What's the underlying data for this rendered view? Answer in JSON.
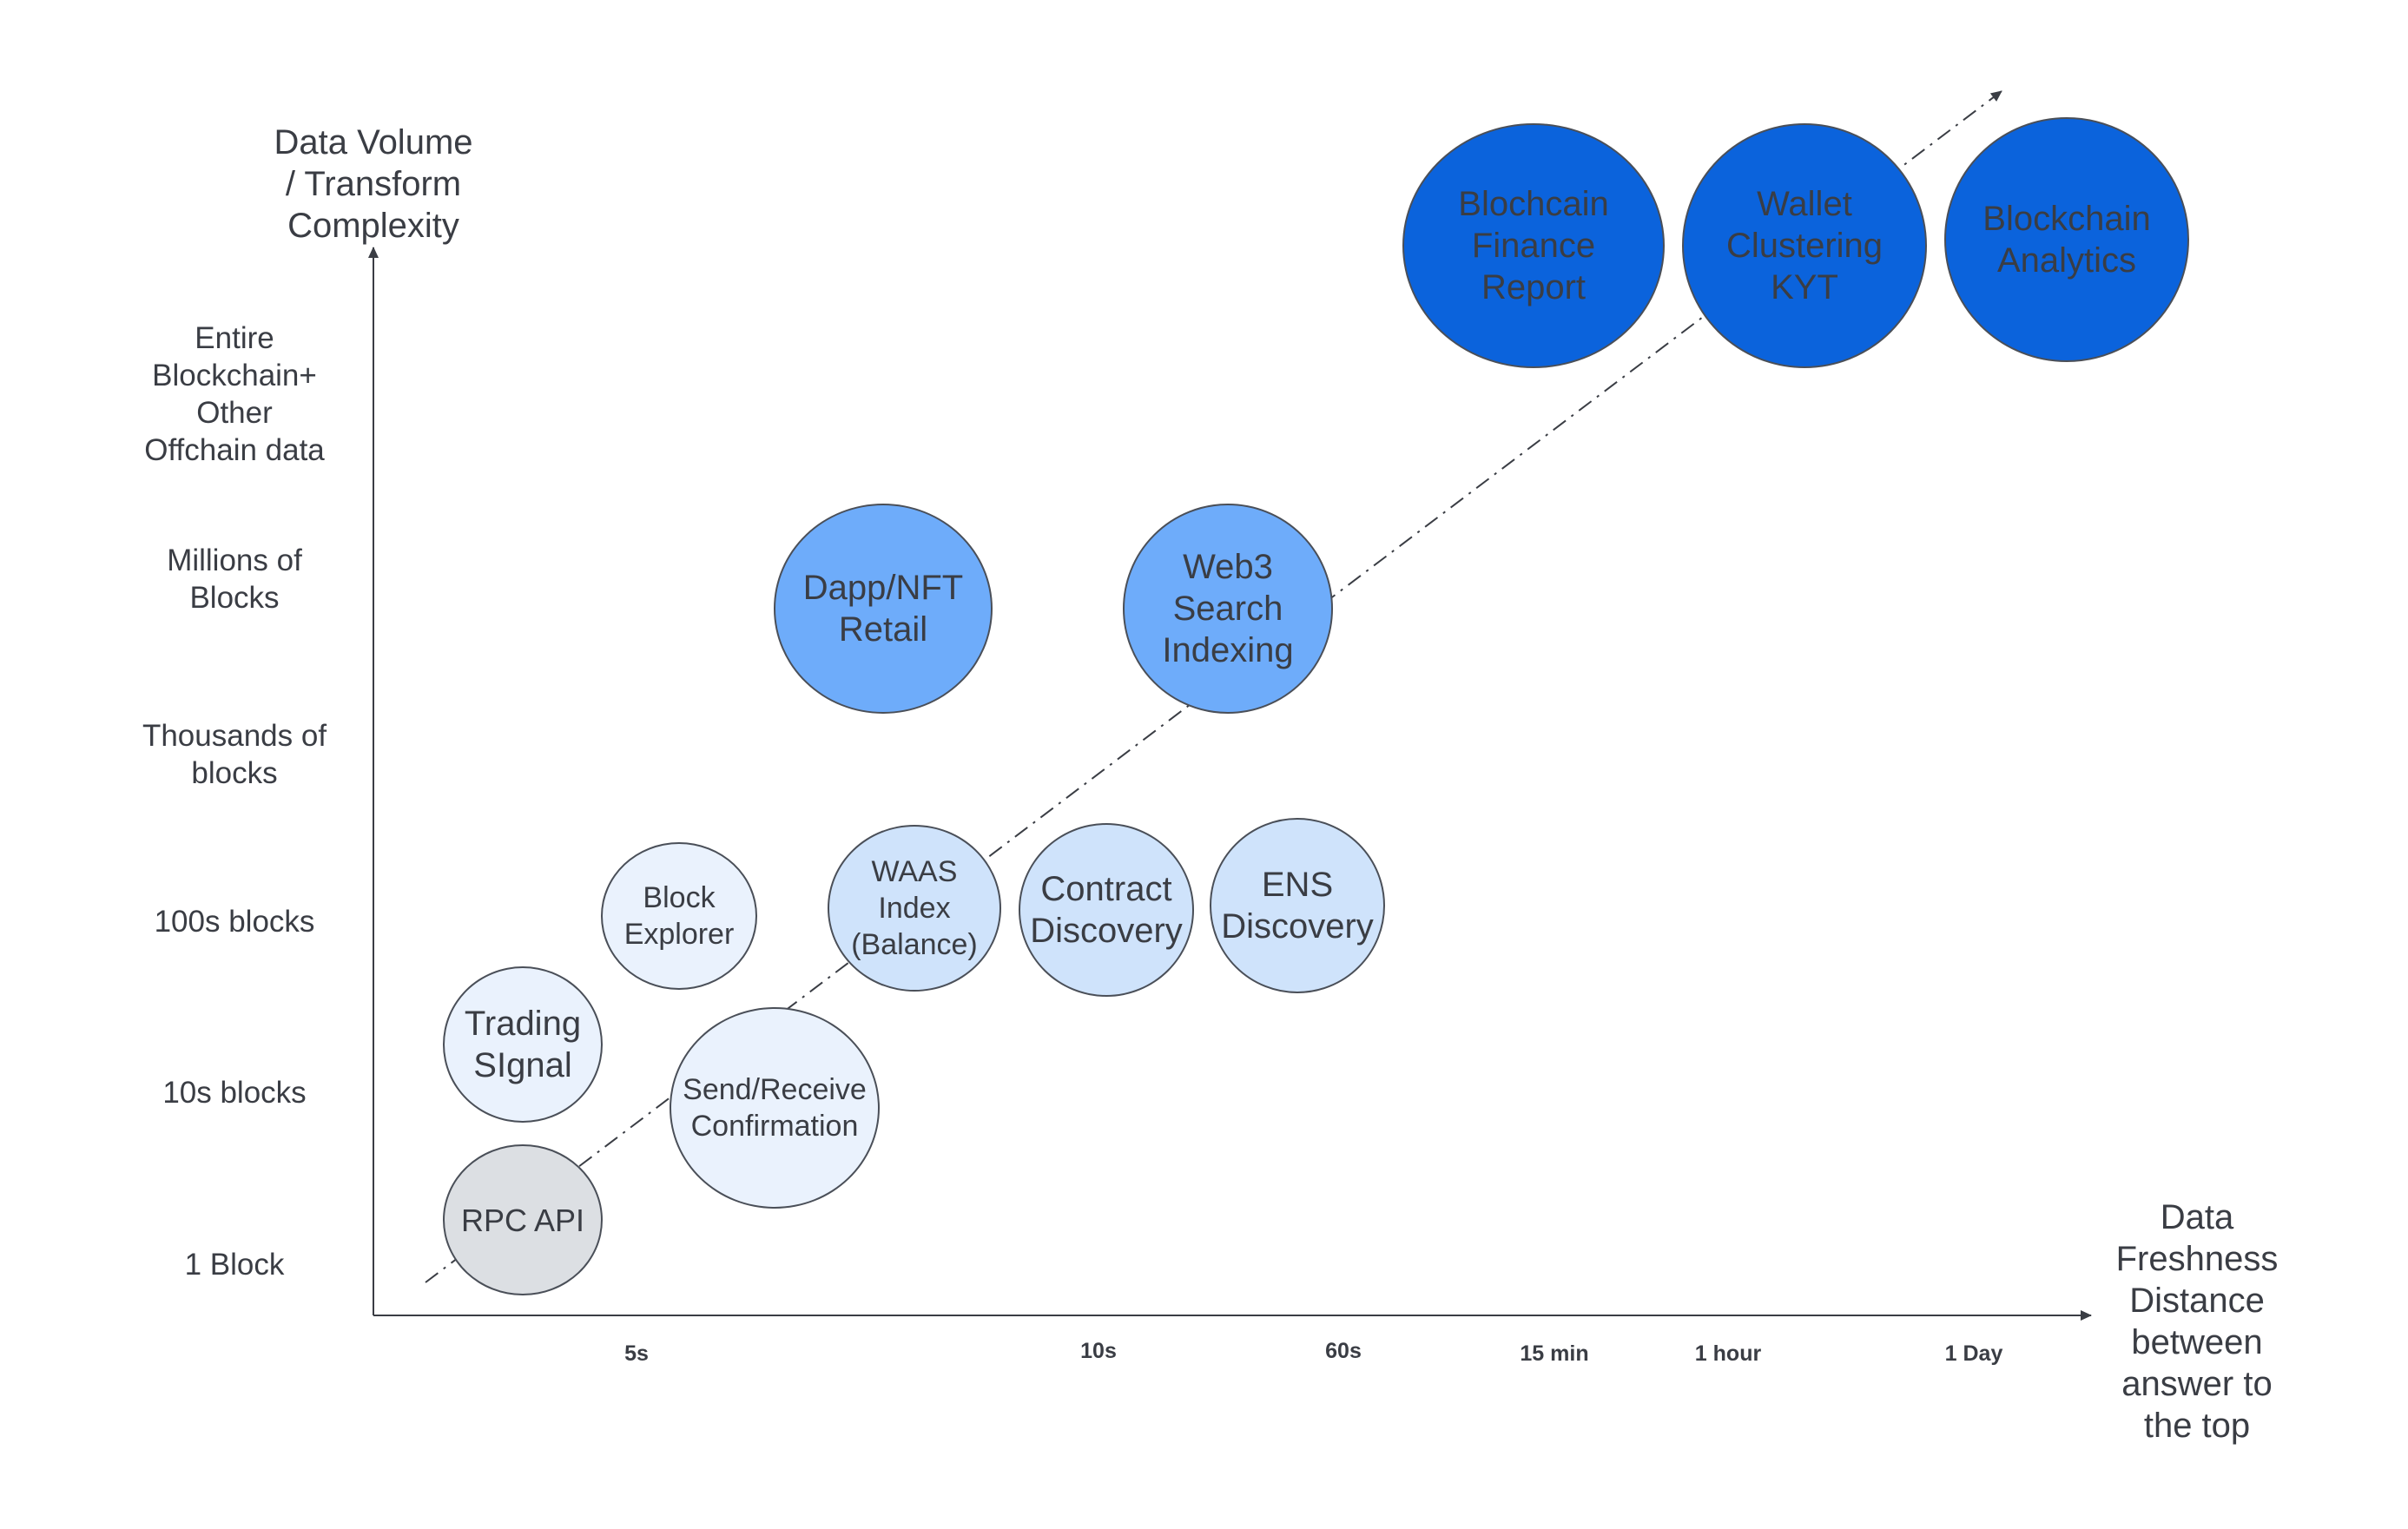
{
  "axes": {
    "y_title": "Data Volume\n/ Transform\nComplexity",
    "x_title": "Data\nFreshness\nDistance\nbetween\nanswer to\nthe top"
  },
  "y_levels": [
    "Entire\nBlockchain+\nOther\nOffchain data",
    "Millions of\nBlocks",
    "Thousands of\nblocks",
    "100s blocks",
    "10s blocks",
    "1 Block"
  ],
  "x_levels": [
    "5s",
    "10s",
    "60s",
    "15 min",
    "1 hour",
    "1 Day"
  ],
  "nodes": {
    "rpc_api": "RPC API",
    "trading_signal": "Trading\nSIgnal",
    "block_explorer": "Block\nExplorer",
    "send_receive": "Send/Receive\nConfirmation",
    "waas_index": "WAAS\nIndex\n(Balance)",
    "contract_discovery": "Contract\nDiscovery",
    "ens_discovery": "ENS\nDiscovery",
    "dapp_nft_retail": "Dapp/NFT\nRetail",
    "web3_search": "Web3\nSearch\nIndexing",
    "finance_report": "Blochcain\nFinance\nReport",
    "wallet_clustering": "Wallet\nClustering\nKYT",
    "blockchain_analytics": "Blockchain\nAnalytics"
  },
  "colors": {
    "gray": "#dcdfe3",
    "pale_blue": "#eaf2fd",
    "light_blue": "#cfe3fb",
    "mid_blue": "#6eacfa",
    "dark_blue": "#0b63dc",
    "axis": "#3a3d44"
  }
}
